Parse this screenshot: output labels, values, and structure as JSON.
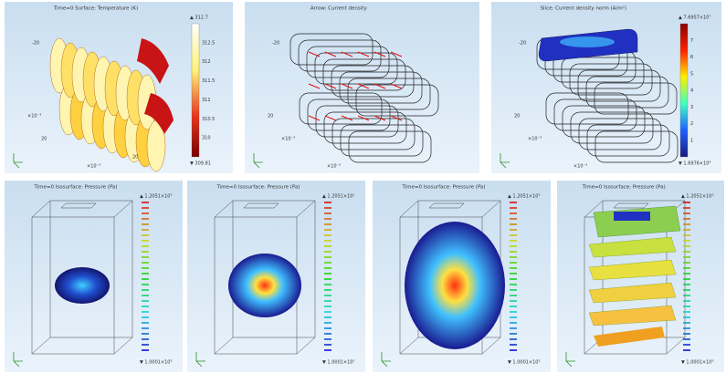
{
  "panels": [
    {
      "title": "Time=0 Surface: Temperature (K)",
      "colorbar": {
        "max": "▲ 312.7",
        "min": "▼ 309.81",
        "ticks": [
          "312.5",
          "312",
          "311.5",
          "311",
          "310.5",
          "310"
        ]
      },
      "axis_labels": [
        "-20",
        "20",
        "×10⁻³",
        "×10⁻³",
        "20"
      ]
    },
    {
      "title": "Arrow: Current density",
      "axis_labels": [
        "-20",
        "×10⁻³",
        "20",
        "×10⁻³"
      ]
    },
    {
      "title": "Slice: Current density norm (A/m²)",
      "colorbar": {
        "max": "▲ 7.6957×10⁷",
        "min": "▼ 1.6976×10⁴",
        "ticks": [
          "7",
          "6",
          "5",
          "4",
          "3",
          "2",
          "1"
        ]
      },
      "axis_labels": [
        "-20",
        "×10⁻³",
        "20",
        "×10⁻³"
      ]
    },
    {
      "title": "Time=0 Isosurface: Pressure (Pa)",
      "colorbar": {
        "max": "▲ 1.2051×10⁵",
        "min": "▼ 1.0001×10⁵"
      }
    },
    {
      "title": "Time=0 Isosurface: Pressure (Pa)",
      "colorbar": {
        "max": "▲ 1.2051×10⁵",
        "min": "▼ 1.0001×10⁵"
      }
    },
    {
      "title": "Time=0 Isosurface: Pressure (Pa)",
      "colorbar": {
        "max": "▲ 1.2051×10⁵",
        "min": "▼ 1.0001×10⁵"
      }
    },
    {
      "title": "Time=0 Isosurface: Pressure (Pa)",
      "colorbar": {
        "max": "▲ 1.2051×10⁵",
        "min": "▼ 1.0001×10⁵"
      }
    }
  ]
}
